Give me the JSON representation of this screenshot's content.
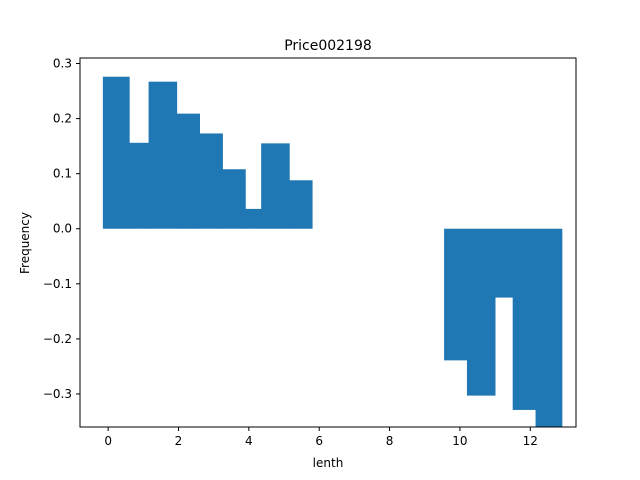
{
  "chart_data": {
    "type": "bar",
    "title": "Price002198",
    "xlabel": "lenth",
    "ylabel": "Frequency",
    "xlim": [
      -0.8,
      13.3
    ],
    "ylim": [
      -0.36,
      0.31
    ],
    "xticks": [
      0,
      2,
      4,
      6,
      8,
      10,
      12
    ],
    "yticks": [
      -0.3,
      -0.2,
      -0.1,
      0.0,
      0.1,
      0.2,
      0.3
    ],
    "ytick_labels": [
      "−0.3",
      "−0.2",
      "−0.1",
      "0.0",
      "0.1",
      "0.2",
      "0.3"
    ],
    "grid": false,
    "legend": "none",
    "bar_color": "#1f77b4",
    "bars": [
      {
        "x0": -0.15,
        "x1": 0.6,
        "value": 0.276
      },
      {
        "x0": 0.6,
        "x1": 1.15,
        "value": 0.156
      },
      {
        "x0": 1.15,
        "x1": 1.95,
        "value": 0.267
      },
      {
        "x0": 1.95,
        "x1": 2.6,
        "value": 0.209
      },
      {
        "x0": 2.6,
        "x1": 3.25,
        "value": 0.173
      },
      {
        "x0": 3.25,
        "x1": 3.9,
        "value": 0.108
      },
      {
        "x0": 3.9,
        "x1": 4.35,
        "value": 0.036
      },
      {
        "x0": 4.35,
        "x1": 5.15,
        "value": 0.155
      },
      {
        "x0": 5.15,
        "x1": 5.8,
        "value": 0.088
      },
      {
        "x0": 9.55,
        "x1": 10.2,
        "value": -0.239
      },
      {
        "x0": 10.2,
        "x1": 11.0,
        "value": -0.303
      },
      {
        "x0": 11.0,
        "x1": 11.5,
        "value": -0.125
      },
      {
        "x0": 11.5,
        "x1": 12.15,
        "value": -0.329
      },
      {
        "x0": 12.15,
        "x1": 12.9,
        "value": -0.36
      }
    ]
  }
}
